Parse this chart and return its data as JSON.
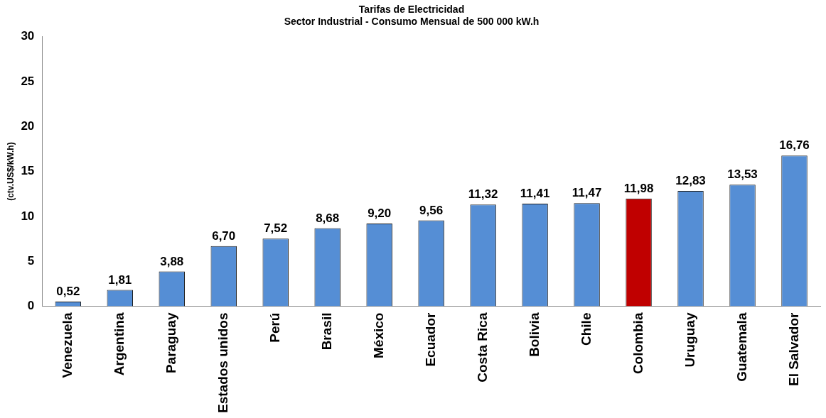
{
  "chart_data": {
    "type": "bar",
    "title": "Tarifas de Electricidad",
    "subtitle": "Sector Industrial - Consumo Mensual de 500 000 kW.h",
    "ylabel": "(ctv.US$/kW.h)",
    "categories": [
      "Venezuela",
      "Argentina",
      "Paraguay",
      "Estados unidos",
      "Perú",
      "Brasil",
      "México",
      "Ecuador",
      "Costa Rica",
      "Bolivia",
      "Chile",
      "Colombia",
      "Uruguay",
      "Guatemala",
      "El Salvador"
    ],
    "values": [
      0.52,
      1.81,
      3.88,
      6.7,
      7.52,
      8.68,
      9.2,
      9.56,
      11.32,
      11.41,
      11.47,
      11.98,
      12.83,
      13.53,
      16.76
    ],
    "value_labels": [
      "0,52",
      "1,81",
      "3,88",
      "6,70",
      "7,52",
      "8,68",
      "9,20",
      "9,56",
      "11,32",
      "11,41",
      "11,47",
      "11,98",
      "12,83",
      "13,53",
      "16,76"
    ],
    "colors": [
      "#558ed5",
      "#558ed5",
      "#558ed5",
      "#558ed5",
      "#558ed5",
      "#558ed5",
      "#558ed5",
      "#558ed5",
      "#558ed5",
      "#558ed5",
      "#558ed5",
      "#c00000",
      "#558ed5",
      "#558ed5",
      "#558ed5"
    ],
    "ylim": [
      0,
      30
    ],
    "yticks": [
      0,
      5,
      10,
      15,
      20,
      25,
      30
    ],
    "grid": false,
    "legend": false
  }
}
